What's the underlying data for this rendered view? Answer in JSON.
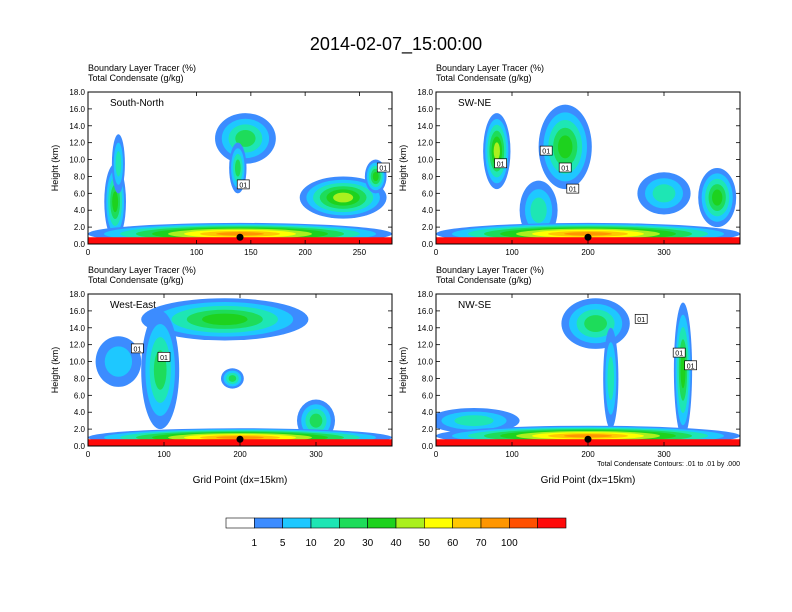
{
  "figure": {
    "title": "2014-02-07_15:00:00",
    "left_label": "Boundary Layer Tracer    (%)",
    "right_label": "Total Condensate    (g/kg)",
    "xlabel": "Grid Point (dx=15km)",
    "ylabel": "Height (km)",
    "contour_note": "Total Condensate Contours: .01 to .01 by .000"
  },
  "colorbar": {
    "colors": [
      "#ffffff",
      "#3c8cff",
      "#1ec8ff",
      "#1ee6b4",
      "#1edc5a",
      "#1ed21e",
      "#aaf01e",
      "#ffff00",
      "#ffc800",
      "#ff9600",
      "#ff5000",
      "#ff0a0a"
    ],
    "labels": [
      "1",
      "5",
      "10",
      "20",
      "30",
      "40",
      "50",
      "60",
      "70",
      "100"
    ]
  },
  "chart_data": [
    {
      "type": "heatmap",
      "panel": "South-North",
      "ylim": [
        0,
        18
      ],
      "yticks": [
        "0.0",
        "2.0",
        "4.0",
        "6.0",
        "8.0",
        "10.0",
        "12.0",
        "14.0",
        "16.0",
        "18.0"
      ],
      "xlim": [
        0,
        280
      ],
      "xticks": [
        0,
        100,
        150,
        200,
        250
      ],
      "marker_x": 140,
      "boxes": [
        {
          "x": 143,
          "y": 7.0,
          "label": "01"
        },
        {
          "x": 272,
          "y": 9.0,
          "label": "01"
        }
      ],
      "blobs": [
        {
          "x": 25,
          "y": 5.0,
          "rx": 10,
          "ry": 4.5,
          "level": 5
        },
        {
          "x": 28,
          "y": 9.5,
          "rx": 6,
          "ry": 3.5,
          "level": 3
        },
        {
          "x": 145,
          "y": 12.5,
          "rx": 28,
          "ry": 3.0,
          "level": 4
        },
        {
          "x": 138,
          "y": 9.0,
          "rx": 8,
          "ry": 3.0,
          "level": 4
        },
        {
          "x": 235,
          "y": 5.5,
          "rx": 40,
          "ry": 2.5,
          "level": 6
        },
        {
          "x": 265,
          "y": 8.0,
          "rx": 10,
          "ry": 2.0,
          "level": 5
        },
        {
          "x": 140,
          "y": 1.2,
          "rx": 140,
          "ry": 1.3,
          "level": 9
        }
      ]
    },
    {
      "type": "heatmap",
      "panel": "SW-NE",
      "ylim": [
        0,
        18
      ],
      "yticks": [
        "0.0",
        "2.0",
        "4.0",
        "6.0",
        "8.0",
        "10.0",
        "12.0",
        "14.0",
        "16.0",
        "18.0"
      ],
      "xlim": [
        0,
        400
      ],
      "xticks": [
        0,
        100,
        200,
        300
      ],
      "marker_x": 200,
      "boxes": [
        {
          "x": 85,
          "y": 9.5,
          "label": "01"
        },
        {
          "x": 145,
          "y": 11.0,
          "label": "01"
        },
        {
          "x": 170,
          "y": 9.0,
          "label": "01"
        },
        {
          "x": 180,
          "y": 6.5,
          "label": "01"
        }
      ],
      "blobs": [
        {
          "x": 80,
          "y": 11.0,
          "rx": 18,
          "ry": 4.5,
          "level": 6
        },
        {
          "x": 170,
          "y": 11.5,
          "rx": 35,
          "ry": 5.0,
          "level": 5
        },
        {
          "x": 135,
          "y": 4.0,
          "rx": 25,
          "ry": 3.5,
          "level": 3
        },
        {
          "x": 300,
          "y": 6.0,
          "rx": 35,
          "ry": 2.5,
          "level": 3
        },
        {
          "x": 370,
          "y": 5.5,
          "rx": 25,
          "ry": 3.5,
          "level": 5
        },
        {
          "x": 200,
          "y": 1.2,
          "rx": 200,
          "ry": 1.3,
          "level": 9
        }
      ]
    },
    {
      "type": "heatmap",
      "panel": "West-East",
      "ylim": [
        0,
        18
      ],
      "yticks": [
        "0.0",
        "2.0",
        "4.0",
        "6.0",
        "8.0",
        "10.0",
        "12.0",
        "14.0",
        "16.0",
        "18.0"
      ],
      "xlim": [
        0,
        400
      ],
      "xticks": [
        0,
        100,
        200,
        300
      ],
      "marker_x": 200,
      "boxes": [
        {
          "x": 65,
          "y": 11.5,
          "label": "01"
        },
        {
          "x": 100,
          "y": 10.5,
          "label": "01"
        }
      ],
      "blobs": [
        {
          "x": 180,
          "y": 15.0,
          "rx": 110,
          "ry": 2.5,
          "level": 5
        },
        {
          "x": 95,
          "y": 9.0,
          "rx": 25,
          "ry": 7.0,
          "level": 4
        },
        {
          "x": 40,
          "y": 10.0,
          "rx": 30,
          "ry": 3.0,
          "level": 2
        },
        {
          "x": 190,
          "y": 8.0,
          "rx": 15,
          "ry": 1.2,
          "level": 4
        },
        {
          "x": 300,
          "y": 3.0,
          "rx": 25,
          "ry": 2.5,
          "level": 4
        },
        {
          "x": 200,
          "y": 1.0,
          "rx": 200,
          "ry": 1.1,
          "level": 9
        }
      ]
    },
    {
      "type": "heatmap",
      "panel": "NW-SE",
      "ylim": [
        0,
        18
      ],
      "yticks": [
        "0.0",
        "2.0",
        "4.0",
        "6.0",
        "8.0",
        "10.0",
        "12.0",
        "14.0",
        "16.0",
        "18.0"
      ],
      "xlim": [
        0,
        400
      ],
      "xticks": [
        0,
        100,
        200,
        300
      ],
      "marker_x": 200,
      "boxes": [
        {
          "x": 270,
          "y": 15.0,
          "label": "01"
        },
        {
          "x": 320,
          "y": 11.0,
          "label": "01"
        },
        {
          "x": 335,
          "y": 9.5,
          "label": "01"
        }
      ],
      "blobs": [
        {
          "x": 210,
          "y": 14.5,
          "rx": 45,
          "ry": 3.0,
          "level": 4
        },
        {
          "x": 230,
          "y": 8.0,
          "rx": 10,
          "ry": 6.0,
          "level": 3
        },
        {
          "x": 325,
          "y": 9.0,
          "rx": 12,
          "ry": 8.0,
          "level": 5
        },
        {
          "x": 50,
          "y": 3.0,
          "rx": 60,
          "ry": 1.5,
          "level": 3
        },
        {
          "x": 200,
          "y": 1.2,
          "rx": 200,
          "ry": 1.2,
          "level": 9
        }
      ]
    }
  ]
}
